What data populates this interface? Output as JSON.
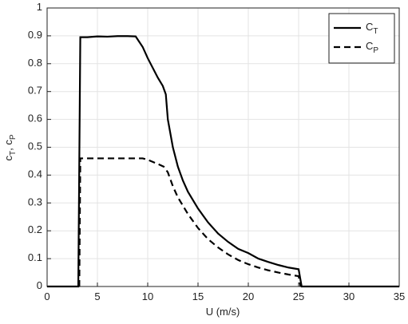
{
  "chart_data": {
    "type": "line",
    "xlabel": "U (m/s)",
    "ylabel": "c_T, c_P",
    "xlim": [
      0,
      35
    ],
    "xticks": [
      0,
      5,
      10,
      15,
      20,
      25,
      30,
      35
    ],
    "ylim": [
      0,
      1
    ],
    "yticks": [
      0,
      0.1,
      0.2,
      0.3,
      0.4,
      0.5,
      0.6,
      0.7,
      0.8,
      0.9,
      1
    ],
    "grid": true,
    "legend": "upper right",
    "series": [
      {
        "name": "C_T",
        "color": "#000000",
        "line_style": "solid",
        "x": [
          0,
          3.1,
          3.3,
          4,
          5,
          6,
          7,
          8,
          8.8,
          9.5,
          10,
          11,
          11.5,
          11.8,
          12,
          12.5,
          13,
          13.5,
          14,
          15,
          16,
          17,
          18,
          19,
          20,
          21,
          22,
          23,
          24,
          25,
          25.3,
          35
        ],
        "values": [
          0,
          0,
          0.895,
          0.895,
          0.898,
          0.897,
          0.899,
          0.899,
          0.898,
          0.86,
          0.82,
          0.75,
          0.72,
          0.69,
          0.6,
          0.5,
          0.43,
          0.38,
          0.34,
          0.28,
          0.23,
          0.19,
          0.16,
          0.135,
          0.12,
          0.1,
          0.088,
          0.077,
          0.068,
          0.062,
          0,
          0
        ]
      },
      {
        "name": "C_P",
        "color": "#000000",
        "line_style": "dashed",
        "x": [
          3.2,
          3.3,
          4,
          5,
          6,
          7,
          8,
          9,
          9.5,
          10,
          11,
          11.6,
          12,
          12.5,
          13,
          14,
          15,
          16,
          17,
          18,
          19,
          20,
          21,
          22,
          23,
          24,
          25,
          25.2
        ],
        "values": [
          0,
          0.46,
          0.46,
          0.46,
          0.46,
          0.46,
          0.46,
          0.46,
          0.46,
          0.455,
          0.44,
          0.43,
          0.41,
          0.36,
          0.32,
          0.26,
          0.21,
          0.17,
          0.14,
          0.115,
          0.095,
          0.08,
          0.068,
          0.058,
          0.05,
          0.043,
          0.037,
          0
        ]
      }
    ]
  }
}
